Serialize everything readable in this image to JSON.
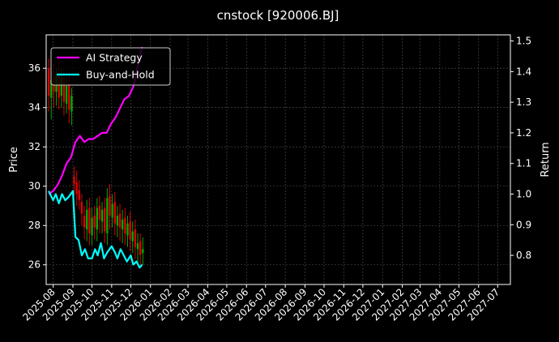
{
  "chart_data": {
    "type": "line",
    "title": "cnstock [920006.BJ]",
    "ylabel_left": "Price",
    "ylabel_right": "Return",
    "ylim_left": [
      25.0,
      37.7
    ],
    "ylim_right": [
      0.705,
      1.52
    ],
    "yticks_left": [
      26,
      28,
      30,
      32,
      34,
      36
    ],
    "yticks_right": [
      0.8,
      0.9,
      1.0,
      1.1,
      1.2,
      1.3,
      1.4,
      1.5
    ],
    "x_tick_labels": [
      "2025-08",
      "2025-09",
      "2025-10",
      "2025-11",
      "2025-12",
      "2026-01",
      "2026-02",
      "2026-03",
      "2026-04",
      "2026-05",
      "2026-06",
      "2026-07",
      "2026-08",
      "2026-09",
      "2026-10",
      "2026-11",
      "2026-12",
      "2027-01",
      "2027-02",
      "2027-03",
      "2027-04",
      "2027-05",
      "2027-06",
      "2027-07"
    ],
    "grid": true,
    "legend_position": "top-left",
    "colors": {
      "background": "#000000",
      "grid": "#555555",
      "ai_strategy": "#ff00ff",
      "buy_and_hold": "#00ffff",
      "candle_up": "#00aa00",
      "candle_down": "#dd0000"
    },
    "series": [
      {
        "name": "AI Strategy",
        "axis": "right",
        "x": [
          "2025-07-25",
          "2025-08-01",
          "2025-08-08",
          "2025-08-15",
          "2025-08-22",
          "2025-08-29",
          "2025-09-05",
          "2025-09-12",
          "2025-09-19",
          "2025-09-26",
          "2025-10-03",
          "2025-10-10",
          "2025-10-17",
          "2025-10-24",
          "2025-10-31",
          "2025-11-07",
          "2025-11-14",
          "2025-11-21",
          "2025-11-28",
          "2025-12-05",
          "2025-12-10",
          "2025-12-15",
          "2025-12-19"
        ],
        "y": [
          1.0,
          1.01,
          1.03,
          1.06,
          1.1,
          1.12,
          1.17,
          1.19,
          1.17,
          1.18,
          1.18,
          1.19,
          1.2,
          1.2,
          1.23,
          1.25,
          1.28,
          1.31,
          1.32,
          1.35,
          1.4,
          1.45,
          1.48
        ]
      },
      {
        "name": "Buy-and-Hold",
        "axis": "right",
        "x": [
          "2025-07-25",
          "2025-08-01",
          "2025-08-05",
          "2025-08-10",
          "2025-08-15",
          "2025-08-20",
          "2025-08-25",
          "2025-09-01",
          "2025-09-05",
          "2025-09-10",
          "2025-09-15",
          "2025-09-20",
          "2025-09-25",
          "2025-10-01",
          "2025-10-06",
          "2025-10-10",
          "2025-10-15",
          "2025-10-20",
          "2025-10-25",
          "2025-11-01",
          "2025-11-06",
          "2025-11-10",
          "2025-11-15",
          "2025-11-20",
          "2025-11-25",
          "2025-12-01",
          "2025-12-05",
          "2025-12-10",
          "2025-12-15",
          "2025-12-19"
        ],
        "y": [
          1.01,
          0.98,
          1.0,
          0.97,
          1.0,
          0.98,
          0.99,
          1.01,
          0.86,
          0.85,
          0.8,
          0.82,
          0.79,
          0.79,
          0.82,
          0.8,
          0.84,
          0.79,
          0.81,
          0.83,
          0.81,
          0.79,
          0.82,
          0.8,
          0.78,
          0.8,
          0.77,
          0.78,
          0.76,
          0.77
        ]
      }
    ],
    "candlestick": {
      "axis": "left",
      "x": [
        "2025-07-25",
        "2025-07-29",
        "2025-08-02",
        "2025-08-06",
        "2025-08-10",
        "2025-08-14",
        "2025-08-18",
        "2025-08-22",
        "2025-08-26",
        "2025-08-30",
        "2025-09-03",
        "2025-09-07",
        "2025-09-11",
        "2025-09-15",
        "2025-09-19",
        "2025-09-23",
        "2025-09-27",
        "2025-10-01",
        "2025-10-05",
        "2025-10-09",
        "2025-10-13",
        "2025-10-17",
        "2025-10-21",
        "2025-10-25",
        "2025-10-29",
        "2025-11-02",
        "2025-11-06",
        "2025-11-10",
        "2025-11-14",
        "2025-11-18",
        "2025-11-22",
        "2025-11-26",
        "2025-11-30",
        "2025-12-04",
        "2025-12-08",
        "2025-12-12",
        "2025-12-16",
        "2025-12-20"
      ],
      "open": [
        36.0,
        34.5,
        35.5,
        34.8,
        35.8,
        34.6,
        35.5,
        34.2,
        35.2,
        33.8,
        30.5,
        30.2,
        29.8,
        29.2,
        28.5,
        27.8,
        28.9,
        27.5,
        28.5,
        27.8,
        29.0,
        28.2,
        28.9,
        27.6,
        29.5,
        28.4,
        29.2,
        28.0,
        28.6,
        27.8,
        28.4,
        27.5,
        28.2,
        27.2,
        27.8,
        26.8,
        27.2,
        26.6
      ],
      "close": [
        34.6,
        35.4,
        34.8,
        35.7,
        34.5,
        35.5,
        34.3,
        35.1,
        33.9,
        34.6,
        30.1,
        29.6,
        29.3,
        28.6,
        27.9,
        28.8,
        27.6,
        28.4,
        27.9,
        28.9,
        28.3,
        28.8,
        27.7,
        29.4,
        28.5,
        29.1,
        28.1,
        28.5,
        27.9,
        28.3,
        27.6,
        28.1,
        27.3,
        27.7,
        26.9,
        27.1,
        26.5,
        26.8
      ],
      "high": [
        36.5,
        35.9,
        36.2,
        36.0,
        36.3,
        36.0,
        35.9,
        35.6,
        35.8,
        35.0,
        31.0,
        30.8,
        30.3,
        29.6,
        29.0,
        29.3,
        29.4,
        28.9,
        29.0,
        29.4,
        29.5,
        29.2,
        29.4,
        29.9,
        30.1,
        29.6,
        29.7,
        29.0,
        29.1,
        28.8,
        28.9,
        28.5,
        28.7,
        28.2,
        28.3,
        27.6,
        27.6,
        27.4
      ],
      "low": [
        33.8,
        33.4,
        34.0,
        34.1,
        33.9,
        34.0,
        33.6,
        33.7,
        33.2,
        33.1,
        29.5,
        29.0,
        28.8,
        28.0,
        27.3,
        27.2,
        27.0,
        27.0,
        27.3,
        27.2,
        27.6,
        27.6,
        27.1,
        27.0,
        27.8,
        27.9,
        27.5,
        27.4,
        27.2,
        27.1,
        27.0,
        26.9,
        26.7,
        26.6,
        26.3,
        26.1,
        25.9,
        26.0
      ]
    }
  }
}
